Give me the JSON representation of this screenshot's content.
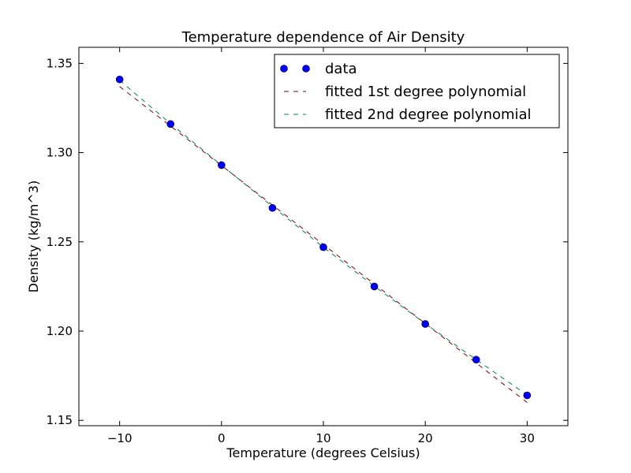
{
  "chart_data": {
    "type": "line",
    "title": "Temperature dependence of Air Density",
    "xlabel": "Temperature (degrees Celsius)",
    "ylabel": "Density (kg/m^3)",
    "xlim": [
      -14,
      34
    ],
    "ylim": [
      1.147,
      1.359
    ],
    "x_ticks": [
      -10,
      0,
      10,
      20,
      30
    ],
    "x_tick_labels": [
      "−10",
      "0",
      "10",
      "20",
      "30"
    ],
    "y_ticks": [
      1.15,
      1.2,
      1.25,
      1.3,
      1.35
    ],
    "y_tick_labels": [
      "1.15",
      "1.20",
      "1.25",
      "1.30",
      "1.35"
    ],
    "grid": false,
    "legend_position": "top-right",
    "series": [
      {
        "name": "data",
        "kind": "markers",
        "color": "#0000ff",
        "x": [
          -10,
          -5,
          0,
          5,
          10,
          15,
          20,
          25,
          30
        ],
        "y": [
          1.341,
          1.316,
          1.293,
          1.269,
          1.247,
          1.225,
          1.204,
          1.184,
          1.164
        ]
      },
      {
        "name": "fitted 1st degree polynomial",
        "kind": "dashed-line",
        "color": "#800000",
        "x": [
          -10,
          30
        ],
        "y": [
          1.337,
          1.16
        ]
      },
      {
        "name": "fitted 2nd degree polynomial",
        "kind": "dashed-line",
        "color": "#008060",
        "x": [
          -10,
          -5,
          0,
          5,
          10,
          15,
          20,
          25,
          30
        ],
        "y": [
          1.3405,
          1.3162,
          1.293,
          1.2698,
          1.247,
          1.2252,
          1.2042,
          1.184,
          1.1642
        ]
      }
    ]
  }
}
